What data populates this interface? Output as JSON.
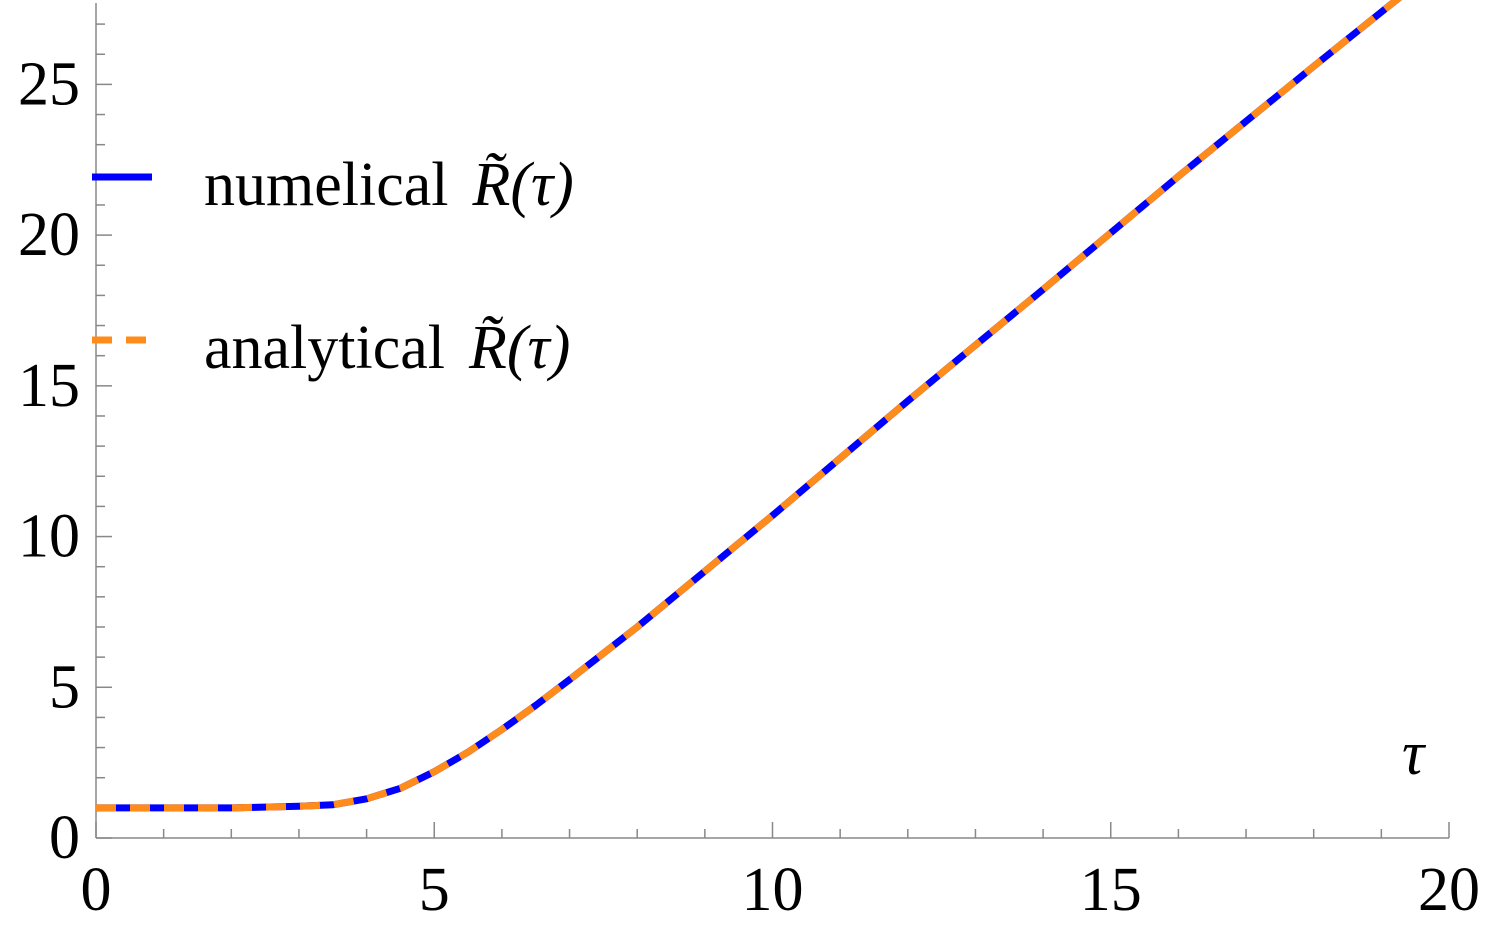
{
  "chart_data": {
    "type": "line",
    "title": "",
    "xlabel": "τ",
    "ylabel": "",
    "xlim": [
      0,
      20
    ],
    "ylim": [
      0,
      27.7
    ],
    "x_ticks": [
      "0",
      "5",
      "10",
      "15",
      "20"
    ],
    "y_ticks": [
      "0",
      "5",
      "10",
      "15",
      "20",
      "25"
    ],
    "grid": false,
    "legend_position": "top-left",
    "series": [
      {
        "name": "numelical",
        "symbol": "R̃(τ)",
        "style": "solid",
        "color": "#0000ff",
        "x": [
          0,
          1,
          2,
          3,
          3.5,
          4,
          4.5,
          5,
          5.5,
          6,
          6.5,
          7,
          8,
          9,
          10,
          12,
          14,
          16,
          18,
          20
        ],
        "y": [
          1,
          1,
          1,
          1.05,
          1.1,
          1.3,
          1.65,
          2.2,
          2.85,
          3.6,
          4.4,
          5.25,
          7.0,
          8.85,
          10.7,
          14.5,
          18.2,
          21.95,
          25.6,
          29.2
        ]
      },
      {
        "name": "analytical",
        "symbol": "R̃(τ)",
        "style": "dashed",
        "color": "#ff8c1a",
        "x": [
          0,
          1,
          2,
          3,
          3.5,
          4,
          4.5,
          5,
          5.5,
          6,
          6.5,
          7,
          8,
          9,
          10,
          12,
          14,
          16,
          18,
          20
        ],
        "y": [
          1,
          1,
          1,
          1.05,
          1.1,
          1.3,
          1.65,
          2.2,
          2.85,
          3.6,
          4.4,
          5.25,
          7.0,
          8.85,
          10.7,
          14.5,
          18.2,
          21.95,
          25.6,
          29.2
        ]
      }
    ]
  }
}
